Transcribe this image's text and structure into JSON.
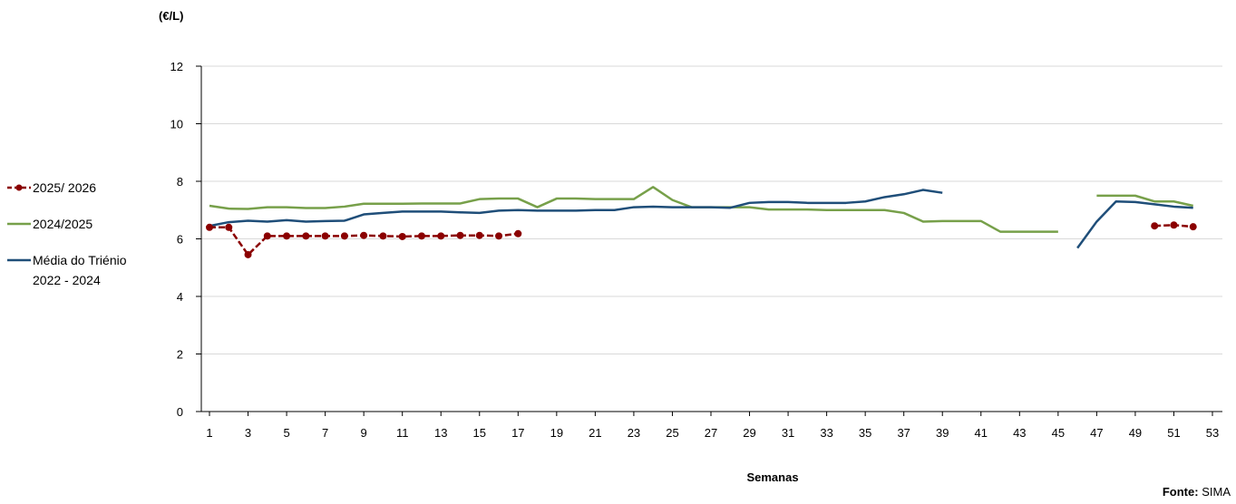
{
  "chart_data": {
    "type": "line",
    "unit_label": "(€/L)",
    "xlabel": "Semanas",
    "ylim": [
      0,
      12
    ],
    "yticks": [
      0,
      2,
      4,
      6,
      8,
      10,
      12
    ],
    "xlim": [
      1,
      53
    ],
    "xticks": [
      1,
      3,
      5,
      7,
      9,
      11,
      13,
      15,
      17,
      19,
      21,
      23,
      25,
      27,
      29,
      31,
      33,
      35,
      37,
      39,
      41,
      43,
      45,
      47,
      49,
      51,
      53
    ],
    "grid": "horizontal",
    "legend_position": "left",
    "series": [
      {
        "name": "2025/ 2026",
        "color": "#8B0000",
        "marker": "circle",
        "dashed": true,
        "x": [
          1,
          2,
          3,
          4,
          5,
          6,
          7,
          8,
          9,
          10,
          11,
          12,
          13,
          14,
          15,
          16,
          17,
          50,
          51,
          52
        ],
        "values": [
          6.4,
          6.4,
          5.45,
          6.1,
          6.1,
          6.1,
          6.1,
          6.1,
          6.12,
          6.1,
          6.08,
          6.1,
          6.1,
          6.12,
          6.12,
          6.1,
          6.18,
          6.45,
          6.48,
          6.42
        ]
      },
      {
        "name": "2024/2025",
        "color": "#77A04A",
        "marker": "none",
        "dashed": false,
        "x": [
          1,
          2,
          3,
          4,
          5,
          6,
          7,
          8,
          9,
          10,
          11,
          12,
          13,
          14,
          15,
          16,
          17,
          18,
          19,
          20,
          21,
          22,
          23,
          24,
          25,
          26,
          27,
          28,
          29,
          30,
          31,
          32,
          33,
          34,
          35,
          36,
          37,
          38,
          39,
          40,
          41,
          42,
          43,
          44,
          45,
          null,
          47,
          48,
          49,
          50,
          51,
          52
        ],
        "values": [
          7.15,
          7.05,
          7.04,
          7.1,
          7.1,
          7.07,
          7.07,
          7.12,
          7.22,
          7.22,
          7.22,
          7.23,
          7.23,
          7.23,
          7.38,
          7.4,
          7.4,
          7.1,
          7.4,
          7.4,
          7.38,
          7.38,
          7.38,
          7.8,
          7.35,
          7.1,
          7.1,
          7.1,
          7.1,
          7.02,
          7.02,
          7.02,
          7.0,
          7.0,
          7.0,
          7.0,
          6.9,
          6.6,
          6.62,
          6.62,
          6.62,
          6.25,
          6.25,
          6.25,
          6.25,
          null,
          7.5,
          7.5,
          7.5,
          7.3,
          7.3,
          7.15
        ]
      },
      {
        "name": "Média do Triénio\n2022 - 2024",
        "color": "#1F4E79",
        "marker": "none",
        "dashed": false,
        "x": [
          1,
          2,
          3,
          4,
          5,
          6,
          7,
          8,
          9,
          10,
          11,
          12,
          13,
          14,
          15,
          16,
          17,
          18,
          19,
          20,
          21,
          22,
          23,
          24,
          25,
          26,
          27,
          28,
          29,
          30,
          31,
          32,
          33,
          34,
          35,
          36,
          37,
          38,
          39,
          null,
          46,
          47,
          48,
          49,
          50,
          51,
          52
        ],
        "values": [
          6.45,
          6.58,
          6.63,
          6.6,
          6.65,
          6.6,
          6.62,
          6.63,
          6.85,
          6.9,
          6.95,
          6.95,
          6.95,
          6.92,
          6.9,
          6.98,
          7.0,
          6.98,
          6.98,
          6.98,
          7.0,
          7.0,
          7.1,
          7.12,
          7.1,
          7.1,
          7.1,
          7.08,
          7.25,
          7.28,
          7.28,
          7.25,
          7.25,
          7.25,
          7.3,
          7.45,
          7.55,
          7.7,
          7.6,
          null,
          5.68,
          6.6,
          7.3,
          7.28,
          7.2,
          7.12,
          7.08
        ]
      }
    ]
  },
  "source": {
    "label": "Fonte:",
    "value": "SIMA"
  }
}
